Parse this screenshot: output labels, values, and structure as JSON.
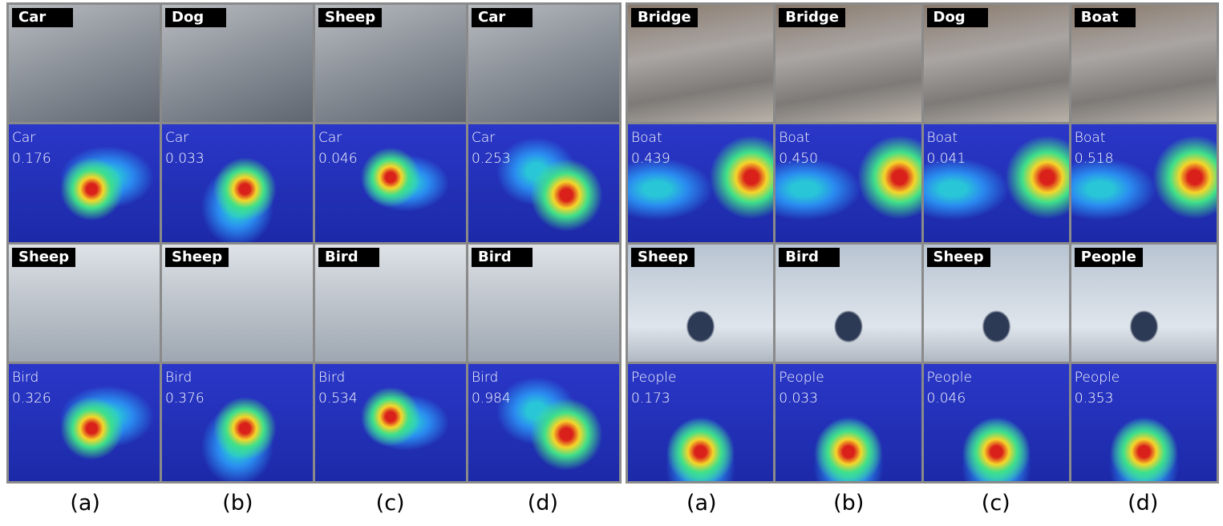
{
  "panels": [
    {
      "photo_rows": [
        [
          "Car",
          "Dog",
          "Sheep",
          "Car"
        ],
        [
          "Sheep",
          "Sheep",
          "Bird",
          "Bird"
        ]
      ],
      "heatmap_rows": [
        [
          {
            "class": "Car",
            "score": "0.176"
          },
          {
            "class": "Car",
            "score": "0.033"
          },
          {
            "class": "Car",
            "score": "0.046"
          },
          {
            "class": "Car",
            "score": "0.253"
          }
        ],
        [
          {
            "class": "Bird",
            "score": "0.326"
          },
          {
            "class": "Bird",
            "score": "0.376"
          },
          {
            "class": "Bird",
            "score": "0.534"
          },
          {
            "class": "Bird",
            "score": "0.984"
          }
        ]
      ],
      "captions": [
        "(a)",
        "(b)",
        "(c)",
        "(d)"
      ]
    },
    {
      "photo_rows": [
        [
          "Bridge",
          "Bridge",
          "Dog",
          "Boat"
        ],
        [
          "Sheep",
          "Bird",
          "Sheep",
          "People"
        ]
      ],
      "heatmap_rows": [
        [
          {
            "class": "Boat",
            "score": "0.439"
          },
          {
            "class": "Boat",
            "score": "0.450"
          },
          {
            "class": "Boat",
            "score": "0.041"
          },
          {
            "class": "Boat",
            "score": "0.518"
          }
        ],
        [
          {
            "class": "People",
            "score": "0.173"
          },
          {
            "class": "People",
            "score": "0.033"
          },
          {
            "class": "People",
            "score": "0.046"
          },
          {
            "class": "People",
            "score": "0.353"
          }
        ]
      ],
      "captions": [
        "(a)",
        "(b)",
        "(c)",
        "(d)"
      ]
    }
  ]
}
